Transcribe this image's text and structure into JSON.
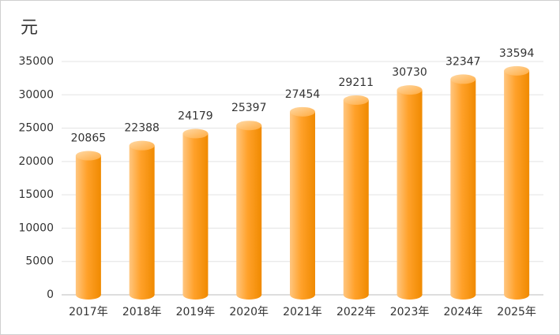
{
  "chart_data": {
    "type": "bar",
    "unit_label": "元",
    "categories": [
      "2017年",
      "2018年",
      "2019年",
      "2020年",
      "2021年",
      "2022年",
      "2023年",
      "2024年",
      "2025年"
    ],
    "values": [
      20865,
      22388,
      24179,
      25397,
      27454,
      29211,
      30730,
      32347,
      33594
    ],
    "color": "#ff9a1a",
    "ylim": [
      0,
      35000
    ],
    "yticks": [
      0,
      5000,
      10000,
      15000,
      20000,
      25000,
      30000,
      35000
    ],
    "grid": true
  }
}
